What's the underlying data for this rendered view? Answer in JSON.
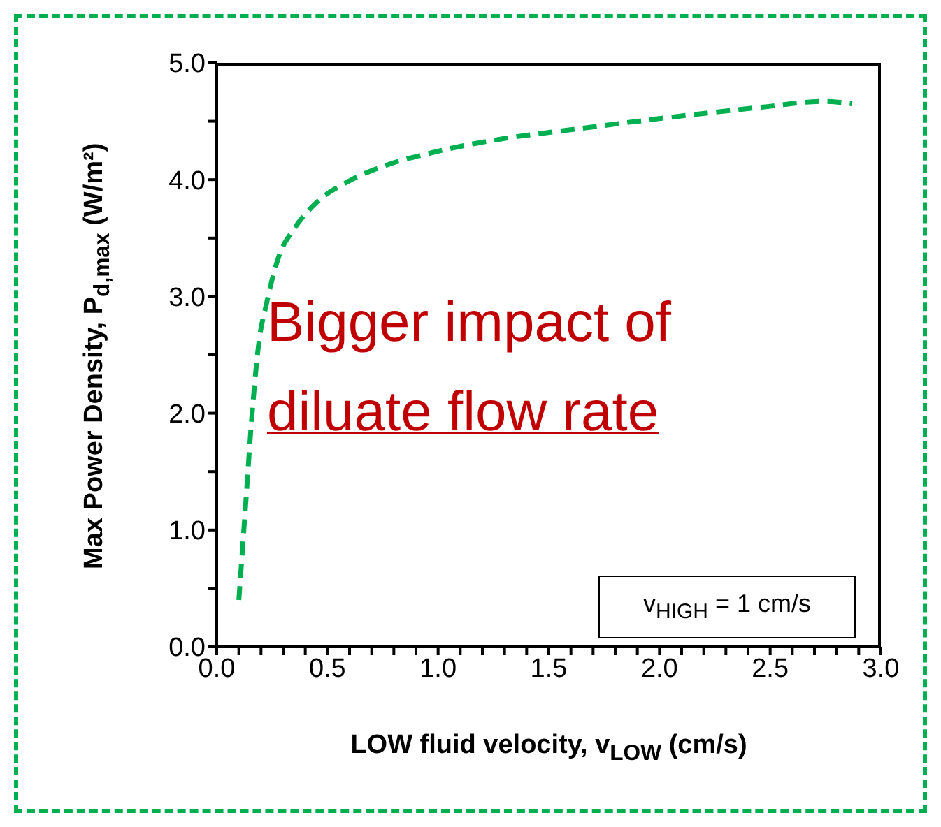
{
  "chart_data": {
    "type": "line",
    "xlabel": "LOW fluid velocity, v$_{LOW}$ (cm/s)",
    "ylabel": "Max Power Density, P$_{d,max}$ (W/m²)",
    "annotations": [
      "Bigger impact of diluate flow rate",
      "v$_{HIGH}$ = 1 cm/s"
    ],
    "x": [
      0.1,
      0.13,
      0.16,
      0.19,
      0.225,
      0.28,
      0.35,
      0.46,
      0.59,
      0.76,
      0.97,
      1.29,
      1.61,
      2.03,
      2.46,
      2.74,
      2.87
    ],
    "series": [
      {
        "color": "#00b050",
        "values": [
          0.4,
          1.2,
          2.0,
          2.6,
          2.94,
          3.34,
          3.58,
          3.82,
          3.98,
          4.12,
          4.23,
          4.35,
          4.43,
          4.53,
          4.62,
          4.67,
          4.65
        ]
      }
    ],
    "xlim": [
      0,
      3
    ],
    "ylim": [
      0,
      5
    ],
    "xticks": [
      {
        "value": 0,
        "label": "0.0"
      },
      {
        "value": 0.1,
        "label": null
      },
      {
        "value": 0.2,
        "label": null
      },
      {
        "value": 0.3,
        "label": null
      },
      {
        "value": 0.4,
        "label": null
      },
      {
        "value": 0.5,
        "label": "0.5"
      },
      {
        "value": 0.6,
        "label": null
      },
      {
        "value": 0.7,
        "label": null
      },
      {
        "value": 0.8,
        "label": null
      },
      {
        "value": 0.9,
        "label": null
      },
      {
        "value": 1,
        "label": "1.0"
      },
      {
        "value": 1.1,
        "label": null
      },
      {
        "value": 1.2,
        "label": null
      },
      {
        "value": 1.3,
        "label": null
      },
      {
        "value": 1.4,
        "label": null
      },
      {
        "value": 1.5,
        "label": "1.5"
      },
      {
        "value": 1.6,
        "label": null
      },
      {
        "value": 1.7,
        "label": null
      },
      {
        "value": 1.8,
        "label": null
      },
      {
        "value": 1.9,
        "label": null
      },
      {
        "value": 2,
        "label": "2.0"
      },
      {
        "value": 2.1,
        "label": null
      },
      {
        "value": 2.2,
        "label": null
      },
      {
        "value": 2.3,
        "label": null
      },
      {
        "value": 2.4,
        "label": null
      },
      {
        "value": 2.5,
        "label": "2.5"
      },
      {
        "value": 2.6,
        "label": null
      },
      {
        "value": 2.7,
        "label": null
      },
      {
        "value": 2.8,
        "label": null
      },
      {
        "value": 2.9,
        "label": null
      },
      {
        "value": 3,
        "label": "3.0"
      }
    ],
    "yticks": [
      {
        "value": 0,
        "label": "0.0"
      },
      {
        "value": 0.5,
        "label": null
      },
      {
        "value": 1,
        "label": "1.0"
      },
      {
        "value": 1.5,
        "label": null
      },
      {
        "value": 2,
        "label": "2.0"
      },
      {
        "value": 2.5,
        "label": null
      },
      {
        "value": 3,
        "label": "3.0"
      },
      {
        "value": 3.5,
        "label": null
      },
      {
        "value": 4,
        "label": "4.0"
      },
      {
        "value": 4.5,
        "label": null
      },
      {
        "value": 5,
        "label": "5.0"
      }
    ],
    "grid": false,
    "legend": false,
    "marker": "none",
    "line_style": "dashed"
  }
}
